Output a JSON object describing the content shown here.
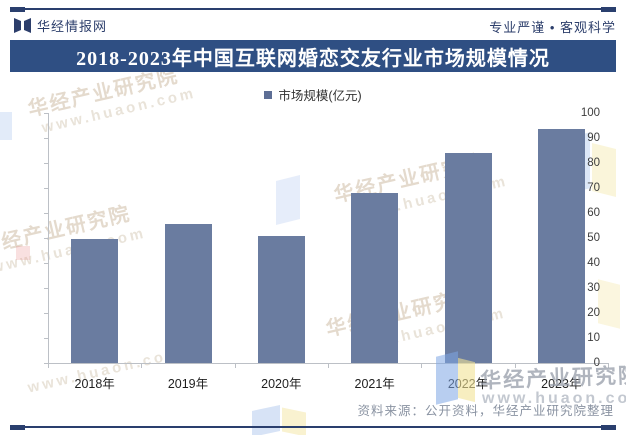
{
  "header": {
    "brand": "华经情报网",
    "tagline": "专业严谨 • 客观科学"
  },
  "title": "2018-2023年中国互联网婚恋交友行业市场规模情况",
  "legend": {
    "label": "市场规模(亿元)"
  },
  "chart_data": {
    "type": "bar",
    "title": "2018-2023年中国互联网婚恋交友行业市场规模情况",
    "categories": [
      "2018年",
      "2019年",
      "2020年",
      "2021年",
      "2022年",
      "2023年"
    ],
    "series": [
      {
        "name": "市场规模(亿元)",
        "values": [
          49.6,
          55.5,
          51.0,
          68.0,
          84.2,
          93.6
        ]
      }
    ],
    "xlabel": "",
    "ylabel": "",
    "ylim": [
      0,
      100
    ],
    "y_tick_step": 10,
    "grid": false,
    "legend_position": "top",
    "bar_color": "#6a7ca0"
  },
  "footer": {
    "source": "资料来源：公开资料，华经产业研究院整理"
  },
  "watermark": {
    "text": "华经产业研究院",
    "url": "www.huaon.com"
  },
  "colors": {
    "navy": "#2a3f6e",
    "banner": "#2f4f83",
    "bar": "#6a7ca0",
    "legend_marker": "#5d6e95"
  }
}
